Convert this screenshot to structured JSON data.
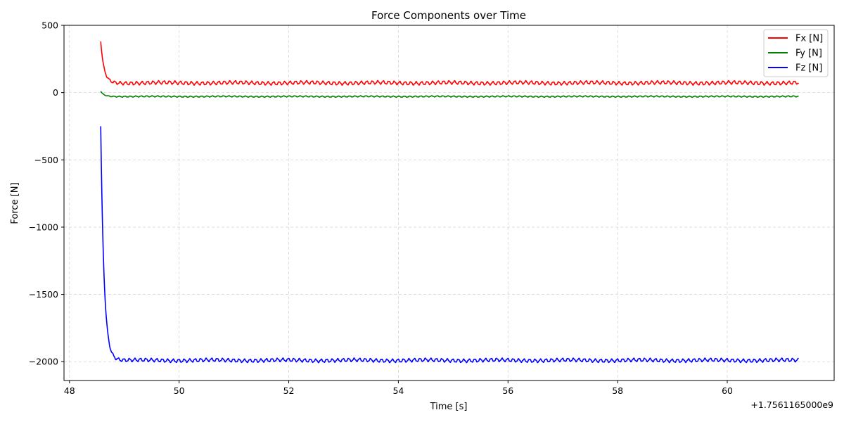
{
  "chart_data": {
    "type": "line",
    "title": "Force Components over Time",
    "xlabel": "Time [s]",
    "ylabel": "Force [N]",
    "x_offset_label": "+1.7561165000e9",
    "xlim": [
      47.9,
      61.95
    ],
    "ylim": [
      -2140,
      500
    ],
    "xticks": [
      48,
      50,
      52,
      54,
      56,
      58,
      60
    ],
    "xtick_labels": [
      "48",
      "50",
      "52",
      "54",
      "56",
      "58",
      "60"
    ],
    "yticks": [
      500,
      0,
      -500,
      -1000,
      -1500,
      -2000
    ],
    "ytick_labels": [
      "500",
      "0",
      "−500",
      "−1000",
      "−1500",
      "−2000"
    ],
    "grid": true,
    "legend_position": "top-right",
    "x_start": 48.57,
    "x_end": 61.3,
    "series": [
      {
        "name": "Fx [N]",
        "color": "#ff0000",
        "initial_value": 380,
        "steady_value": 72,
        "oscillation_amplitude": 14,
        "oscillation_period": 0.1
      },
      {
        "name": "Fy [N]",
        "color": "#008000",
        "initial_value": 10,
        "steady_value": -29,
        "oscillation_amplitude": 5,
        "oscillation_period": 0.1
      },
      {
        "name": "Fz [N]",
        "color": "#0000ff",
        "initial_value": -250,
        "steady_value": -1990,
        "oscillation_amplitude": 14,
        "oscillation_period": 0.1
      }
    ]
  }
}
